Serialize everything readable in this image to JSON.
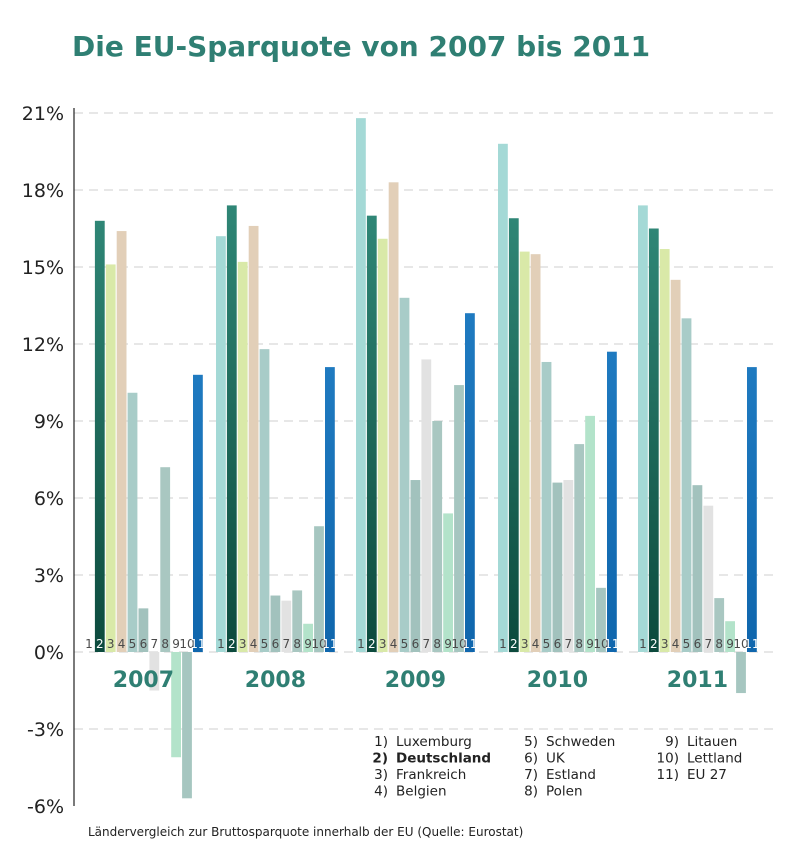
{
  "chart_data": {
    "type": "bar",
    "title": "Die EU-Sparquote von 2007 bis 2011",
    "caption": "Ländervergleich zur Bruttosparquote innerhalb der EU (Quelle: Eurostat)",
    "categories": [
      "2007",
      "2008",
      "2009",
      "2010",
      "2011"
    ],
    "yticks": [
      "21%",
      "18%",
      "15%",
      "12%",
      "9%",
      "6%",
      "3%",
      "0%",
      "-3%",
      "-6%"
    ],
    "ylim": [
      -6,
      21
    ],
    "grid": true,
    "bar_numbers": [
      "1",
      "2",
      "3",
      "4",
      "5",
      "6",
      "7",
      "8",
      "9",
      "10",
      "11"
    ],
    "series": [
      {
        "name": "1) Luxemburg",
        "color": "#a4d9d6",
        "values": [
          null,
          16.2,
          20.8,
          19.8,
          17.4
        ]
      },
      {
        "name": "2) Deutschland",
        "color": "#2b7b6e",
        "values": [
          16.8,
          17.4,
          17.0,
          16.9,
          16.5
        ]
      },
      {
        "name": "3) Frankreich",
        "color": "#d9e9a8",
        "values": [
          15.1,
          15.2,
          16.1,
          15.6,
          15.7
        ]
      },
      {
        "name": "4) Belgien",
        "color": "#e2cfb8",
        "values": [
          16.4,
          16.6,
          18.3,
          15.5,
          14.5
        ]
      },
      {
        "name": "5) Schweden",
        "color": "#a8ccc8",
        "values": [
          10.1,
          11.8,
          13.8,
          11.3,
          13.0
        ]
      },
      {
        "name": "6) UK",
        "color": "#a2c2bd",
        "values": [
          1.7,
          2.2,
          6.7,
          6.6,
          6.5
        ]
      },
      {
        "name": "7) Estland",
        "color": "#e2e2e2",
        "values": [
          -1.5,
          2.0,
          11.4,
          6.7,
          5.7
        ]
      },
      {
        "name": "8) Polen",
        "color": "#a9c7c1",
        "values": [
          7.2,
          2.4,
          9.0,
          8.1,
          2.1
        ]
      },
      {
        "name": "9) Litauen",
        "color": "#b3e3ca",
        "values": [
          -4.1,
          1.1,
          5.4,
          9.2,
          1.2
        ]
      },
      {
        "name": "10) Lettland",
        "color": "#a6c6c0",
        "values": [
          -5.7,
          4.9,
          10.4,
          2.5,
          -1.6
        ]
      },
      {
        "name": "11) EU 27",
        "color": "#1771b9",
        "values": [
          10.8,
          11.1,
          13.2,
          11.7,
          11.1
        ]
      }
    ],
    "legend": {
      "columns": [
        [
          "1) Luxemburg",
          "2) Deutschland",
          "3) Frankreich",
          "4) Belgien"
        ],
        [
          "5) Schweden",
          "6) UK",
          "7) Estland",
          "8) Polen"
        ],
        [
          "9) Litauen",
          "10) Lettland",
          "11) EU 27"
        ]
      ],
      "bold": "2) Deutschland",
      "placement": "bottom"
    }
  }
}
